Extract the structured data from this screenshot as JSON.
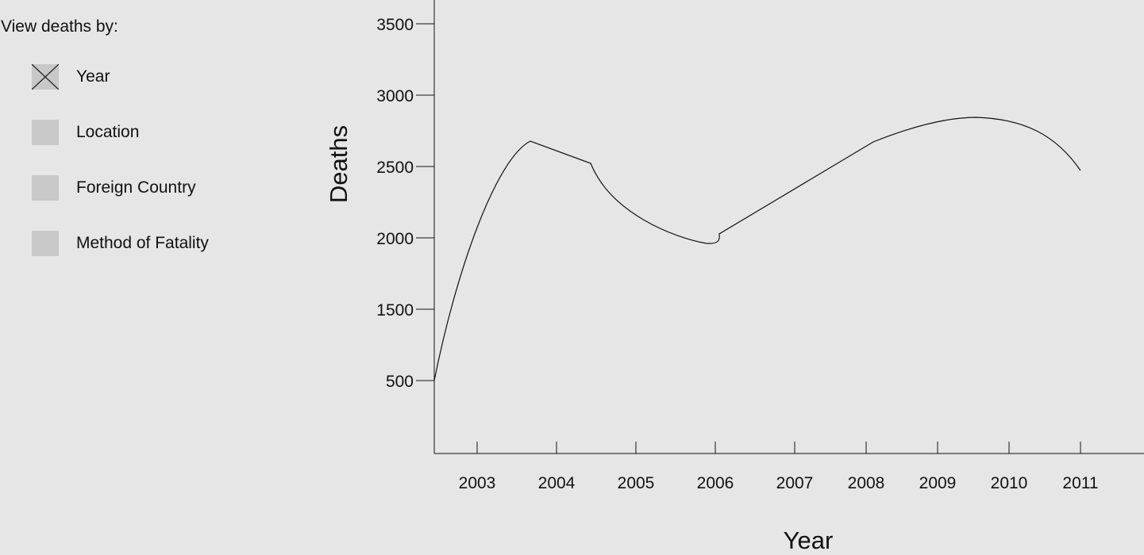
{
  "sidebar": {
    "title": "View deaths by:",
    "options": [
      {
        "label": "Year",
        "checked": true
      },
      {
        "label": "Location",
        "checked": false
      },
      {
        "label": "Foreign Country",
        "checked": false
      },
      {
        "label": "Method of Fatality",
        "checked": false
      }
    ]
  },
  "chart_data": {
    "type": "line",
    "title": "",
    "xlabel": "Year",
    "ylabel": "Deaths",
    "x_ticks": [
      "2003",
      "2004",
      "2005",
      "2006",
      "2007",
      "2008",
      "2009",
      "2010",
      "2011"
    ],
    "y_ticks": [
      "500",
      "1500",
      "2000",
      "2500",
      "3000",
      "3500"
    ],
    "grid": false,
    "legend": "none",
    "series": [
      {
        "x": [
          "2002",
          "2003",
          "2004",
          "2005",
          "2006",
          "2007",
          "2008",
          "2009",
          "2010",
          "2011"
        ],
        "y": [
          500,
          1900,
          2680,
          2520,
          1960,
          2020,
          2680,
          2850,
          2790,
          2470
        ]
      }
    ]
  }
}
